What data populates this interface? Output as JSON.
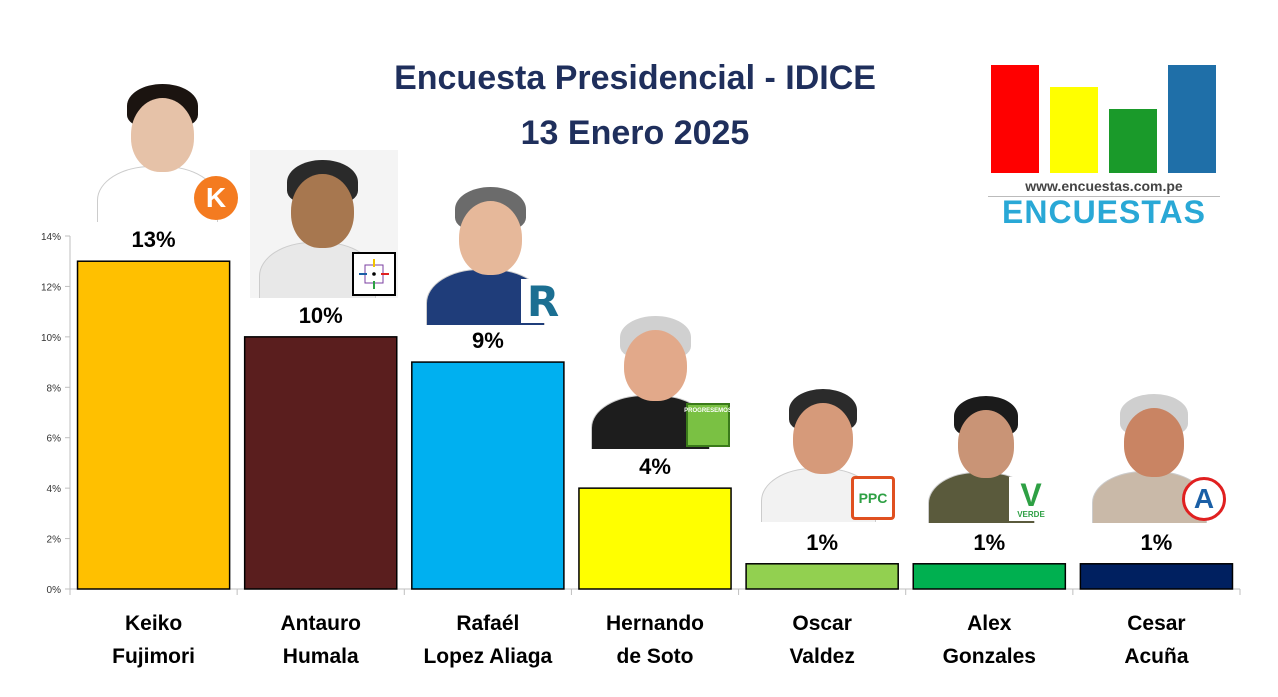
{
  "header": {
    "title": "Encuesta Presidencial - IDICE",
    "subtitle": "13 Enero 2025"
  },
  "logo": {
    "url_text": "www.encuestas.com.pe",
    "name": "ENCUESTAS",
    "colors": [
      "#ff0000",
      "#ffff00",
      "#1a9a2a",
      "#1f6fa8"
    ]
  },
  "chart_data": {
    "type": "bar",
    "categories": [
      [
        "Keiko",
        "Fujimori"
      ],
      [
        "Antauro",
        "Humala"
      ],
      [
        "Rafaél",
        "Lopez Aliaga"
      ],
      [
        "Hernando",
        "de Soto"
      ],
      [
        "Oscar",
        "Valdez"
      ],
      [
        "Alex",
        "Gonzales"
      ],
      [
        "Cesar",
        "Acuña"
      ]
    ],
    "values": [
      13,
      10,
      9,
      4,
      1,
      1,
      1
    ],
    "data_labels": [
      "13%",
      "10%",
      "9%",
      "4%",
      "1%",
      "1%",
      "1%"
    ],
    "colors": [
      "#ffc000",
      "#5a1e1e",
      "#00b0f0",
      "#ffff00",
      "#92d050",
      "#00b050",
      "#002060"
    ],
    "ylim": [
      0,
      14
    ],
    "yticks": [
      "0%",
      "2%",
      "4%",
      "6%",
      "8%",
      "10%",
      "12%",
      "14%"
    ],
    "grid": false,
    "legend": "none"
  },
  "badges": [
    {
      "icon": "fuerza-popular-k-icon",
      "text": "K",
      "color": "#f47b20"
    },
    {
      "icon": "target-logo-icon",
      "text": "",
      "color": "#000000"
    },
    {
      "icon": "renovacion-r-icon",
      "text": "R",
      "color": "#1b6f92"
    },
    {
      "icon": "progresemos-logo-icon",
      "text": "PROGRESEMOS",
      "color": "#7ac143"
    },
    {
      "icon": "ppc-logo-icon",
      "text": "PPC",
      "color": "#2ea044"
    },
    {
      "icon": "verde-v-icon",
      "text": "V",
      "sub": "VERDE",
      "color": "#2ea044"
    },
    {
      "icon": "app-a-icon",
      "text": "A",
      "color": "#1a5fa6"
    }
  ]
}
